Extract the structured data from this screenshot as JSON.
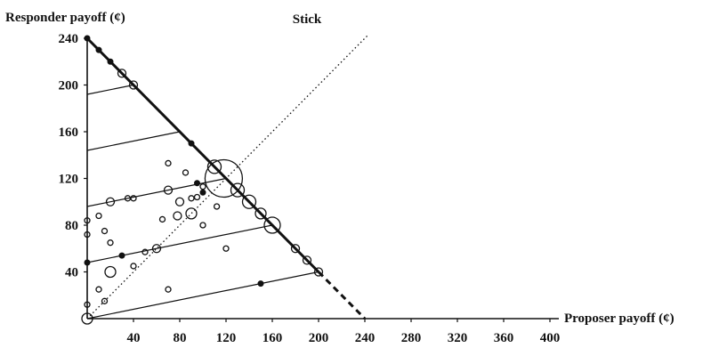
{
  "chart_data": {
    "type": "scatter",
    "title": "",
    "xlabel": "Proposer payoff (¢)",
    "ylabel": "Responder payoff (¢)",
    "xlim": [
      0,
      400
    ],
    "ylim": [
      0,
      240
    ],
    "xticks": [
      "40",
      "80",
      "120",
      "160",
      "200",
      "240",
      "280",
      "320",
      "360",
      "400"
    ],
    "yticks": [
      "40",
      "80",
      "120",
      "160",
      "200",
      "240"
    ],
    "annotations": [
      {
        "label": "Stick",
        "x": 190,
        "y": 250
      }
    ],
    "diagonal": {
      "style": "dotted",
      "from": [
        0,
        0
      ],
      "to": [
        240,
        240
      ]
    },
    "frontier": {
      "solid": {
        "from": [
          0,
          240
        ],
        "to": [
          200,
          40
        ]
      },
      "dashed": {
        "from": [
          200,
          40
        ],
        "to": [
          240,
          0
        ]
      }
    },
    "budget_lines": [
      {
        "from": [
          0,
          0
        ],
        "to": [
          200,
          40
        ]
      },
      {
        "from": [
          0,
          48
        ],
        "to": [
          160,
          80
        ]
      },
      {
        "from": [
          0,
          96
        ],
        "to": [
          120,
          120
        ]
      },
      {
        "from": [
          0,
          144
        ],
        "to": [
          80,
          160
        ]
      },
      {
        "from": [
          0,
          192
        ],
        "to": [
          40,
          200
        ]
      }
    ],
    "filled_points": [
      {
        "x": 0,
        "y": 240
      },
      {
        "x": 10,
        "y": 230
      },
      {
        "x": 20,
        "y": 220
      },
      {
        "x": 90,
        "y": 150
      },
      {
        "x": 95,
        "y": 116
      },
      {
        "x": 30,
        "y": 54
      },
      {
        "x": 100,
        "y": 108
      },
      {
        "x": 150,
        "y": 30
      },
      {
        "x": 0,
        "y": 48
      }
    ],
    "open_points": [
      {
        "x": 0,
        "y": 0,
        "size": 2
      },
      {
        "x": 30,
        "y": 210,
        "size": 1.5
      },
      {
        "x": 40,
        "y": 200,
        "size": 1.5
      },
      {
        "x": 110,
        "y": 130,
        "size": 2.5
      },
      {
        "x": 118,
        "y": 120,
        "size": 7
      },
      {
        "x": 130,
        "y": 110,
        "size": 2.5
      },
      {
        "x": 140,
        "y": 100,
        "size": 2.5
      },
      {
        "x": 150,
        "y": 90,
        "size": 2
      },
      {
        "x": 160,
        "y": 80,
        "size": 3
      },
      {
        "x": 180,
        "y": 60,
        "size": 1.5
      },
      {
        "x": 190,
        "y": 50,
        "size": 1.5
      },
      {
        "x": 200,
        "y": 40,
        "size": 1.5
      },
      {
        "x": 70,
        "y": 133,
        "size": 1
      },
      {
        "x": 85,
        "y": 125,
        "size": 1
      },
      {
        "x": 70,
        "y": 110,
        "size": 1.5
      },
      {
        "x": 100,
        "y": 113,
        "size": 1
      },
      {
        "x": 20,
        "y": 100,
        "size": 1.5
      },
      {
        "x": 35,
        "y": 103,
        "size": 1
      },
      {
        "x": 40,
        "y": 103,
        "size": 1
      },
      {
        "x": 80,
        "y": 100,
        "size": 1.5
      },
      {
        "x": 90,
        "y": 103,
        "size": 1
      },
      {
        "x": 95,
        "y": 104,
        "size": 1
      },
      {
        "x": 112,
        "y": 96,
        "size": 1
      },
      {
        "x": 10,
        "y": 88,
        "size": 1
      },
      {
        "x": 65,
        "y": 85,
        "size": 1
      },
      {
        "x": 78,
        "y": 88,
        "size": 1.5
      },
      {
        "x": 90,
        "y": 90,
        "size": 2
      },
      {
        "x": 100,
        "y": 80,
        "size": 1
      },
      {
        "x": 0,
        "y": 84,
        "size": 1
      },
      {
        "x": 0,
        "y": 72,
        "size": 1
      },
      {
        "x": 15,
        "y": 75,
        "size": 1
      },
      {
        "x": 20,
        "y": 65,
        "size": 1
      },
      {
        "x": 60,
        "y": 60,
        "size": 1.5
      },
      {
        "x": 50,
        "y": 57,
        "size": 1
      },
      {
        "x": 40,
        "y": 45,
        "size": 1
      },
      {
        "x": 120,
        "y": 60,
        "size": 1
      },
      {
        "x": 20,
        "y": 40,
        "size": 2
      },
      {
        "x": 10,
        "y": 25,
        "size": 1
      },
      {
        "x": 70,
        "y": 25,
        "size": 1
      },
      {
        "x": 15,
        "y": 15,
        "size": 1
      },
      {
        "x": 0,
        "y": 12,
        "size": 1
      }
    ]
  }
}
